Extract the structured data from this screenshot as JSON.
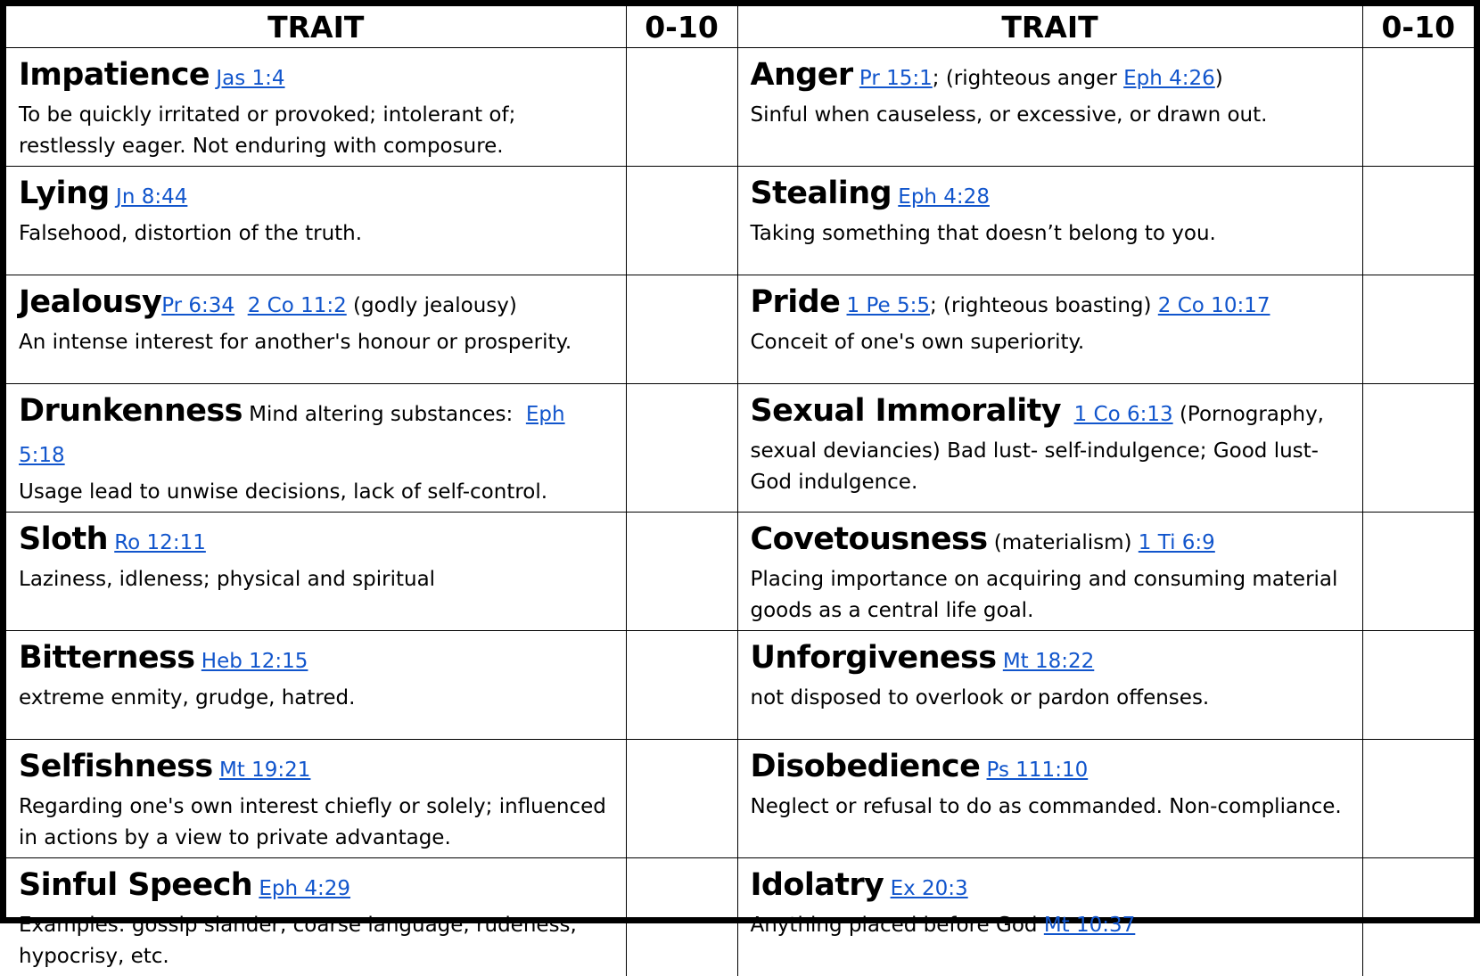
{
  "header": {
    "trait_left": "TRAIT",
    "score_left": "0-10",
    "trait_right": "TRAIT",
    "score_right": "0-10"
  },
  "rows": [
    {
      "left": {
        "name": "Impatience",
        "after_name": " ",
        "ref1": "Jas 1:4",
        "mid": "",
        "ref2": "",
        "tail": "",
        "desc": "To be quickly irritated or provoked; intolerant of; restlessly eager. Not enduring with composure."
      },
      "right": {
        "name": "Anger",
        "after_name": " ",
        "ref1": "Pr 15:1",
        "mid": "; (righteous anger ",
        "ref2": "Eph 4:26",
        "tail": ")",
        "desc": "Sinful when causeless, or excessive, or drawn out."
      }
    },
    {
      "left": {
        "name": "Lying",
        "after_name": " ",
        "ref1": "Jn 8:44",
        "mid": "",
        "ref2": "",
        "tail": "",
        "desc": "Falsehood, distortion of the truth."
      },
      "right": {
        "name": "Stealing",
        "after_name": " ",
        "ref1": "Eph 4:28",
        "mid": "",
        "ref2": "",
        "tail": "",
        "desc": "Taking something that doesn’t belong to you."
      }
    },
    {
      "left": {
        "name": "Jealousy",
        "after_name": "",
        "ref1": "Pr 6:34",
        "mid": "  ",
        "ref2": "2 Co 11:2",
        "tail": " (godly jealousy)",
        "desc": "An intense interest for another's honour or prosperity."
      },
      "right": {
        "name": "Pride",
        "after_name": " ",
        "ref1": "1 Pe 5:5",
        "mid": "; (righteous boasting) ",
        "ref2": "2 Co 10:17",
        "tail": "",
        "desc": "Conceit of one's own superiority."
      }
    },
    {
      "left": {
        "name": "Drunkenness",
        "after_name": " Mind altering substances:  ",
        "ref1": "Eph 5:18",
        "mid": "",
        "ref2": "",
        "tail": "",
        "desc": "Usage lead to unwise decisions, lack of self-control."
      },
      "right": {
        "name": "Sexual Immorality",
        "after_name": "  ",
        "ref1": "1 Co 6:13",
        "mid": " (Pornography,",
        "ref2": "",
        "tail": "",
        "desc": "sexual deviancies) Bad lust- self-indulgence; Good lust- God indulgence."
      }
    },
    {
      "left": {
        "name": "Sloth",
        "after_name": " ",
        "ref1": "Ro 12:11",
        "mid": "",
        "ref2": "",
        "tail": "",
        "desc": "Laziness, idleness; physical and spiritual"
      },
      "right": {
        "name": "Covetousness",
        "after_name": " (materialism) ",
        "ref1": "1 Ti 6:9",
        "mid": "",
        "ref2": "",
        "tail": "",
        "desc": "Placing importance on acquiring and consuming material goods as a central life goal."
      }
    },
    {
      "left": {
        "name": "Bitterness",
        "after_name": " ",
        "ref1": "Heb 12:15",
        "mid": "",
        "ref2": "",
        "tail": "",
        "desc": "extreme enmity, grudge, hatred."
      },
      "right": {
        "name": "Unforgiveness",
        "after_name": " ",
        "ref1": "Mt 18:22",
        "mid": "",
        "ref2": "",
        "tail": "",
        "desc": "not disposed to overlook or pardon offenses."
      }
    },
    {
      "left": {
        "name": "Selfishness",
        "after_name": " ",
        "ref1": "Mt 19:21",
        "mid": "",
        "ref2": "",
        "tail": "",
        "desc": "Regarding one's own interest chiefly or solely; influenced in actions by a view to private advantage."
      },
      "right": {
        "name": "Disobedience",
        "after_name": " ",
        "ref1": "Ps 111:10",
        "mid": "",
        "ref2": "",
        "tail": "",
        "desc": "Neglect or refusal to do as commanded. Non-compliance."
      }
    },
    {
      "left": {
        "name": "Sinful Speech",
        "after_name": " ",
        "ref1": "Eph 4:29",
        "mid": "",
        "ref2": "",
        "tail": "",
        "desc": "Examples: gossip slander, coarse language, rudeness, hypocrisy, etc."
      },
      "right": {
        "name": "Idolatry",
        "after_name": " ",
        "ref1": "Ex 20:3",
        "mid": "",
        "ref2": "",
        "tail": "",
        "desc": "Anything placed before God ",
        "desc_ref": "Mt 10:37"
      }
    }
  ],
  "colors": {
    "link": "#1155cc",
    "border": "#000000"
  }
}
